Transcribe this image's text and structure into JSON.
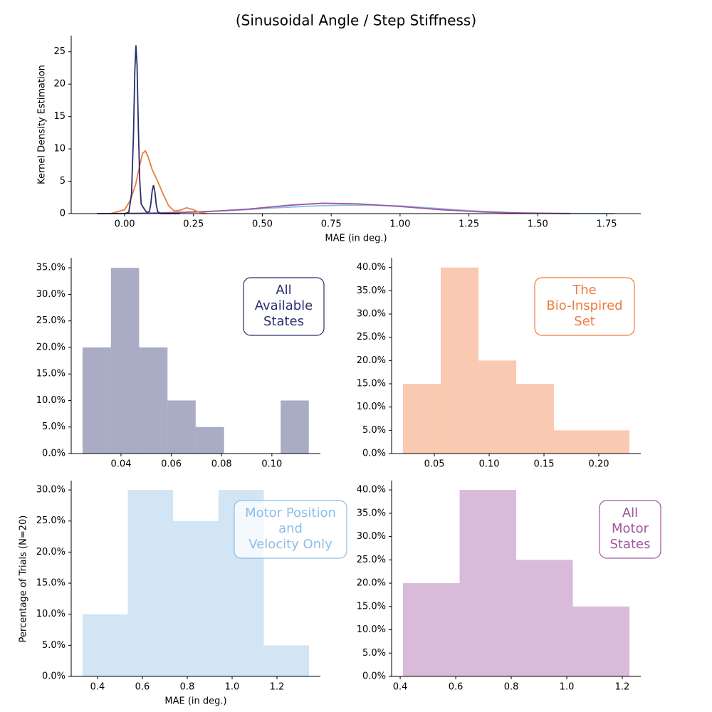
{
  "title": "(Sinusoidal Angle / Step Stiffness)",
  "chart_data": [
    {
      "type": "line",
      "xlabel": "MAE (in deg.)",
      "ylabel": "Kernel Density Estimation",
      "xlim": [
        -0.194,
        1.874
      ],
      "ylim": [
        0,
        27.5
      ],
      "xticks": [
        {
          "value": 0,
          "label": "0.00"
        },
        0.25,
        {
          "value": 0.5,
          "label": "0.50"
        },
        0.75,
        {
          "value": 1,
          "label": "1.00"
        },
        1.25,
        {
          "value": 1.5,
          "label": "1.50"
        },
        1.75
      ],
      "yticks": [
        0,
        5,
        10,
        15,
        20,
        25
      ],
      "series": [
        {
          "color": "#8dbde6",
          "x": [
            -0.1,
            0,
            0.2,
            0.4,
            0.55,
            0.7,
            0.8,
            0.9,
            1.0,
            1.1,
            1.25,
            1.4,
            1.55,
            1.78
          ],
          "values": [
            0,
            0.05,
            0.2,
            0.5,
            0.9,
            1.2,
            1.3,
            1.3,
            1.2,
            0.9,
            0.45,
            0.15,
            0.05,
            0
          ]
        },
        {
          "color": "#a0559f",
          "x": [
            0,
            0.1,
            0.3,
            0.45,
            0.6,
            0.72,
            0.85,
            1.0,
            1.15,
            1.3,
            1.45,
            1.62
          ],
          "values": [
            0,
            0.05,
            0.3,
            0.7,
            1.3,
            1.6,
            1.5,
            1.1,
            0.6,
            0.25,
            0.08,
            0
          ]
        },
        {
          "color": "#f07a3c",
          "x": [
            -0.05,
            0,
            0.02,
            0.04,
            0.055,
            0.065,
            0.075,
            0.085,
            0.1,
            0.12,
            0.14,
            0.16,
            0.18,
            0.2,
            0.225,
            0.25,
            0.27,
            0.3
          ],
          "values": [
            0,
            0.6,
            2,
            4.5,
            7.5,
            9.3,
            9.7,
            8.8,
            6.8,
            5,
            3,
            1.2,
            0.4,
            0.5,
            0.9,
            0.6,
            0.2,
            0
          ]
        },
        {
          "color": "#2b2f6e",
          "x": [
            -0.1,
            0,
            0.015,
            0.025,
            0.032,
            0.037,
            0.041,
            0.045,
            0.05,
            0.055,
            0.06,
            0.07,
            0.08,
            0.09,
            0.095,
            0.1,
            0.105,
            0.11,
            0.115,
            0.12,
            0.13,
            0.2
          ],
          "values": [
            0,
            0,
            0.2,
            3,
            12,
            22,
            26,
            23,
            13,
            5,
            1.5,
            0.8,
            0.2,
            0.3,
            1.5,
            3.5,
            4.4,
            3.3,
            1.3,
            0.3,
            0,
            0
          ]
        }
      ]
    },
    {
      "type": "histogram",
      "color": "#2b2f6e",
      "annotation": [
        "All",
        "Available",
        "States"
      ],
      "bins": [
        0.0247,
        0.036,
        0.0472,
        0.0585,
        0.0697,
        0.081,
        0.0922,
        0.1035,
        0.1147
      ],
      "values": [
        20,
        35,
        20,
        10,
        5,
        0,
        0,
        10
      ],
      "xlim": [
        0.0202,
        0.1193
      ],
      "ylim": [
        0,
        36.9
      ],
      "xticks": [
        0.04,
        0.06,
        0.08,
        {
          "value": 0.1,
          "label": "0.10"
        }
      ],
      "yticks": [
        {
          "value": 0,
          "label": "0.0%"
        },
        {
          "value": 5,
          "label": "5.0%"
        },
        {
          "value": 10,
          "label": "10.0%"
        },
        {
          "value": 15,
          "label": "15.0%"
        },
        {
          "value": 20,
          "label": "20.0%"
        },
        {
          "value": 25,
          "label": "25.0%"
        },
        {
          "value": 30,
          "label": "30.0%"
        },
        {
          "value": 35,
          "label": "35.0%"
        }
      ]
    },
    {
      "type": "histogram",
      "color": "#f07a3c",
      "annotation": [
        "The",
        "Bio-Inspired",
        "Set"
      ],
      "bins": [
        0.0214,
        0.0558,
        0.0903,
        0.1247,
        0.1591,
        0.1935,
        0.2279
      ],
      "values": [
        15,
        40,
        20,
        15,
        5,
        5
      ],
      "xlim": [
        0.011,
        0.2383
      ],
      "ylim": [
        0,
        42.1
      ],
      "xticks": [
        0.05,
        {
          "value": 0.1,
          "label": "0.10"
        },
        0.15,
        {
          "value": 0.2,
          "label": "0.20"
        }
      ],
      "yticks": [
        {
          "value": 0,
          "label": "0.0%"
        },
        {
          "value": 5,
          "label": "5.0%"
        },
        {
          "value": 10,
          "label": "10.0%"
        },
        {
          "value": 15,
          "label": "15.0%"
        },
        {
          "value": 20,
          "label": "20.0%"
        },
        {
          "value": 25,
          "label": "25.0%"
        },
        {
          "value": 30,
          "label": "30.0%"
        },
        {
          "value": 35,
          "label": "35.0%"
        },
        {
          "value": 40,
          "label": "40.0%"
        }
      ]
    },
    {
      "type": "histogram",
      "color": "#8dbde6",
      "annotation": [
        "Motor Position",
        "and",
        "Velocity Only"
      ],
      "xlabel": "MAE (in deg.)",
      "ylabel": "Percentage of Trials (N=20)",
      "bins": [
        0.333,
        0.535,
        0.737,
        0.939,
        1.141,
        1.343
      ],
      "values": [
        10,
        30,
        25,
        30,
        5
      ],
      "xlim": [
        0.2825,
        1.3937
      ],
      "ylim": [
        0,
        31.5
      ],
      "xticks": [
        0.4,
        0.6,
        0.8,
        {
          "value": 1,
          "label": "1.0"
        },
        1.2
      ],
      "yticks": [
        {
          "value": 0,
          "label": "0.0%"
        },
        {
          "value": 5,
          "label": "5.0%"
        },
        {
          "value": 10,
          "label": "10.0%"
        },
        {
          "value": 15,
          "label": "15.0%"
        },
        {
          "value": 20,
          "label": "20.0%"
        },
        {
          "value": 25,
          "label": "25.0%"
        },
        {
          "value": 30,
          "label": "30.0%"
        }
      ]
    },
    {
      "type": "histogram",
      "color": "#a0559f",
      "annotation": [
        "All",
        "Motor",
        "States"
      ],
      "bins": [
        0.41,
        0.614,
        0.818,
        1.022,
        1.226
      ],
      "values": [
        20,
        40,
        25,
        15
      ],
      "xlim": [
        0.369,
        1.2667
      ],
      "ylim": [
        0,
        42.0
      ],
      "xticks": [
        0.4,
        0.6,
        0.8,
        {
          "value": 1,
          "label": "1.0"
        },
        1.2
      ],
      "yticks": [
        {
          "value": 0,
          "label": "0.0%"
        },
        {
          "value": 5,
          "label": "5.0%"
        },
        {
          "value": 10,
          "label": "10.0%"
        },
        {
          "value": 15,
          "label": "15.0%"
        },
        {
          "value": 20,
          "label": "20.0%"
        },
        {
          "value": 25,
          "label": "25.0%"
        },
        {
          "value": 30,
          "label": "30.0%"
        },
        {
          "value": 35,
          "label": "35.0%"
        },
        {
          "value": 40,
          "label": "40.0%"
        }
      ]
    }
  ]
}
